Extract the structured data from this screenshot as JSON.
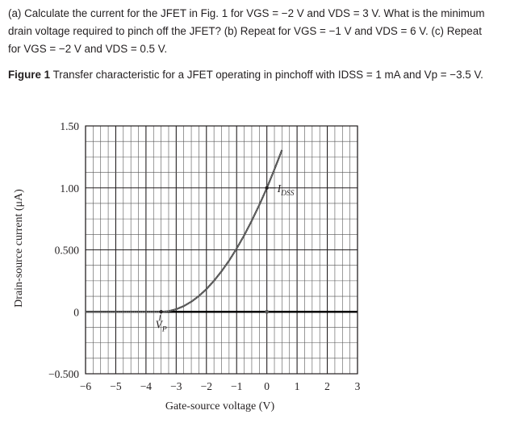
{
  "problem": {
    "text": "(a) Calculate the current for the JFET in Fig. 1 for VGS = −2 V and VDS = 3 V. What is the minimum drain voltage required to pinch off the JFET? (b) Repeat for VGS = −1 V and VDS = 6 V. (c) Repeat for VGS = −2 V and VDS = 0.5 V."
  },
  "figure": {
    "label": "Figure 1",
    "caption": "Transfer characteristic for a JFET operating in pinchoff with IDSS = 1 mA and Vp = −3.5 V."
  },
  "chart_data": {
    "type": "line",
    "title": "",
    "xlabel": "Gate-source voltage (V)",
    "ylabel": "Drain-source current (μA)",
    "xlim": [
      -6,
      3
    ],
    "ylim": [
      -0.5,
      1.5
    ],
    "x_ticks": [
      "−6",
      "−5",
      "−4",
      "−3",
      "−2",
      "−1",
      "0",
      "1",
      "2",
      "3"
    ],
    "y_ticks": [
      "1.50",
      "1.00",
      "0.500",
      "0",
      "−0.500"
    ],
    "grid": true,
    "series": [
      {
        "x": [
          -6,
          -5.5,
          -5,
          -4.5,
          -4,
          -3.5,
          -3.25,
          -3,
          -2.75,
          -2.5,
          -2.25,
          -2,
          -1.75,
          -1.5,
          -1.25,
          -1,
          -0.75,
          -0.5,
          -0.25,
          0,
          0.25,
          0.5
        ],
        "y": [
          0,
          0,
          0,
          0,
          0,
          0,
          0.0051,
          0.0204,
          0.0459,
          0.0816,
          0.1276,
          0.1837,
          0.25,
          0.3265,
          0.4133,
          0.5102,
          0.6173,
          0.7347,
          0.8622,
          1.0,
          1.148,
          1.306
        ]
      }
    ],
    "annotations": [
      {
        "main": "V",
        "sub": "P",
        "x": -3.5,
        "y": 0
      },
      {
        "main": "I",
        "sub": "DSS",
        "x": 0,
        "y": 1.0
      }
    ]
  }
}
